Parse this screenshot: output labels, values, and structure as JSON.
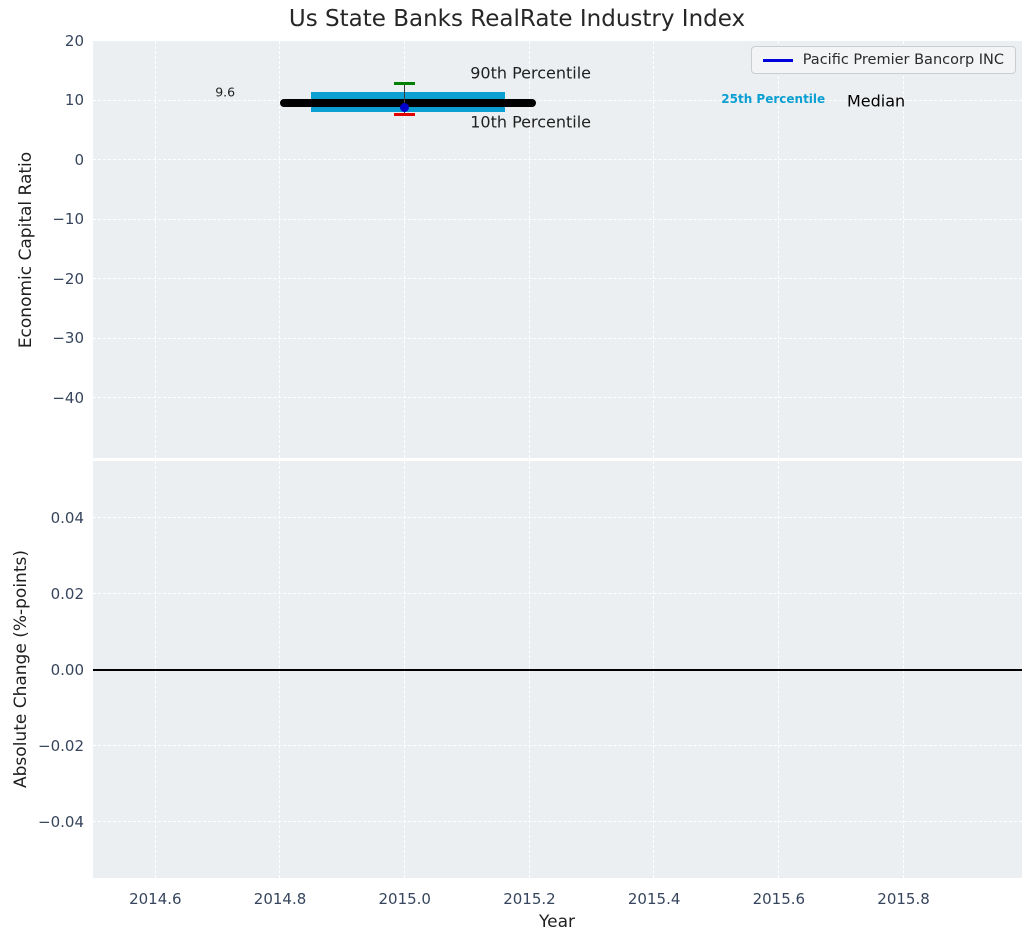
{
  "title": "Us State Banks RealRate Industry Index",
  "legend": {
    "label": "Pacific Premier Bancorp INC",
    "line_color": "#0000dc",
    "position": "upper right"
  },
  "colors": {
    "figure_bg": "#ffffff",
    "axes_bg": "#eceff1",
    "grid": "#ffffff",
    "tick_label": "#36455d",
    "axis_label": "#1f1f1f",
    "title": "#262626",
    "band": "#0b9fd2",
    "median": "#000000",
    "errorbar_line": "#3d3d3d",
    "p90_cap": "#008000",
    "p10_cap": "#e00000",
    "company_marker": "#0000cd",
    "zero_line": "#000000",
    "legend_bg": "#f2f4f6",
    "legend_border": "#c9ced3"
  },
  "chart_data": [
    {
      "id": "industry-index-panel",
      "type": "scatter",
      "title": "Us State Banks RealRate Industry Index",
      "ylabel": "Economic Capital Ratio",
      "xlabel": "",
      "grid": true,
      "legend_position": "upper right",
      "xlim": [
        2014.5,
        2015.99
      ],
      "ylim": [
        -50.1,
        20
      ],
      "xticks": [
        2014.6,
        2014.8,
        2015.0,
        2015.2,
        2015.4,
        2015.6,
        2015.8
      ],
      "xtick_labels": [
        "2014.6",
        "2014.8",
        "2015.0",
        "2015.2",
        "2015.4",
        "2015.6",
        "2015.8"
      ],
      "yticks": [
        20,
        10,
        0,
        -10,
        -20,
        -30,
        -40
      ],
      "ytick_labels": [
        "20",
        "10",
        "0",
        "−10",
        "−20",
        "−30",
        "−40"
      ],
      "year": 2015.0,
      "stats": {
        "median": 9.6,
        "p25": 8.0,
        "p75": 11.4,
        "p10": 7.7,
        "p90": 12.9
      },
      "median_line_span": [
        2014.8,
        2015.21
      ],
      "band_span": [
        2014.85,
        2015.16
      ],
      "series": [
        {
          "name": "Pacific Premier Bancorp INC",
          "type": "scatter",
          "x": [
            2015.0
          ],
          "y": [
            8.8
          ],
          "color": "#0000cd"
        }
      ],
      "annotations": [
        {
          "text": "9.6",
          "x": 2014.712,
          "y": 11.4,
          "color": "#1f1f1f",
          "size": 12.5,
          "weight": "normal",
          "align": "center"
        },
        {
          "text": "90th Percentile",
          "x": 2015.105,
          "y": 14.7,
          "color": "#1f1f1f",
          "size": 16,
          "weight": "normal",
          "align": "left"
        },
        {
          "text": "10th Percentile",
          "x": 2015.105,
          "y": 6.4,
          "color": "#1f1f1f",
          "size": 16,
          "weight": "normal",
          "align": "left"
        },
        {
          "text": "25th Percentile",
          "x": 2015.591,
          "y": 10.2,
          "color": "#0b9fd2",
          "size": 12,
          "weight": "bold",
          "align": "center"
        },
        {
          "text": "Median",
          "x": 2015.756,
          "y": 9.9,
          "color": "#000000",
          "size": 16,
          "weight": "normal",
          "align": "center"
        }
      ]
    },
    {
      "id": "absolute-change-panel",
      "type": "line",
      "ylabel": "Absolute Change (%-points)",
      "xlabel": "Year",
      "grid": true,
      "xlim": [
        2014.5,
        2015.99
      ],
      "ylim": [
        -0.0548,
        0.055
      ],
      "xticks": [
        2014.6,
        2014.8,
        2015.0,
        2015.2,
        2015.4,
        2015.6,
        2015.8
      ],
      "xtick_labels": [
        "2014.6",
        "2014.8",
        "2015.0",
        "2015.2",
        "2015.4",
        "2015.6",
        "2015.8"
      ],
      "yticks": [
        0.04,
        0.02,
        0,
        -0.02,
        -0.04
      ],
      "ytick_labels": [
        "0.04",
        "0.02",
        "0.00",
        "−0.02",
        "−0.04"
      ],
      "series": [
        {
          "name": "zero-reference",
          "type": "hline",
          "y": 0.0,
          "color": "#000000"
        }
      ]
    }
  ]
}
